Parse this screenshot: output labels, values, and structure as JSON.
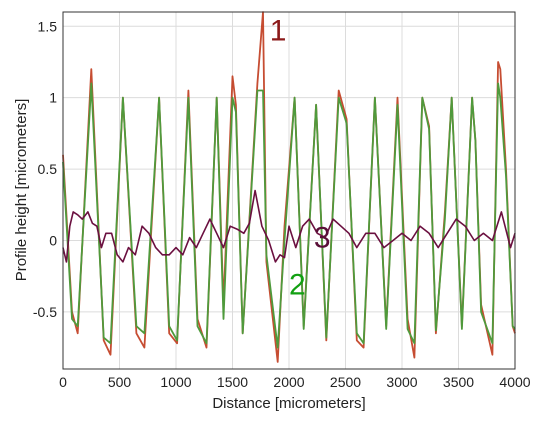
{
  "chart_data": {
    "type": "line",
    "xlabel": "Distance [micrometers]",
    "ylabel": "Profile height [micrometers]",
    "xlim": [
      0,
      4000
    ],
    "ylim": [
      -0.9,
      1.6
    ],
    "x_ticks": [
      0,
      500,
      1000,
      1500,
      2000,
      2500,
      3000,
      3500,
      4000
    ],
    "x_tick_labels": [
      "0",
      "500",
      "1000",
      "1500",
      "2000",
      "2500",
      "3000",
      "3500",
      "4000"
    ],
    "y_ticks": [
      -0.5,
      0,
      0.5,
      1,
      1.5
    ],
    "y_tick_labels": [
      "-0.5",
      "0",
      "0.5",
      "1",
      "1.5"
    ],
    "grid": true,
    "series": [
      {
        "name": "1",
        "color": "#c03a1c",
        "x": [
          0,
          80,
          130,
          250,
          360,
          420,
          530,
          650,
          720,
          850,
          940,
          1010,
          1110,
          1190,
          1270,
          1360,
          1420,
          1500,
          1530,
          1590,
          1720,
          1770,
          1800,
          1900,
          1960,
          2050,
          2130,
          2240,
          2330,
          2440,
          2510,
          2600,
          2660,
          2760,
          2860,
          2960,
          3050,
          3110,
          3180,
          3240,
          3300,
          3380,
          3440,
          3530,
          3620,
          3650,
          3700,
          3800,
          3850,
          3870,
          3920,
          3980,
          4000
        ],
        "values": [
          0.6,
          -0.5,
          -0.65,
          1.2,
          -0.7,
          -0.8,
          1.0,
          -0.65,
          -0.75,
          1.0,
          -0.65,
          -0.72,
          1.05,
          -0.55,
          -0.75,
          1.0,
          -0.45,
          1.15,
          0.95,
          -0.65,
          1.1,
          1.6,
          -0.15,
          -0.85,
          0.1,
          1.0,
          -0.6,
          0.95,
          -0.7,
          1.05,
          0.85,
          -0.7,
          -0.75,
          1.0,
          -0.6,
          1.0,
          -0.55,
          -0.82,
          1.0,
          0.8,
          -0.65,
          0.2,
          1.0,
          -0.6,
          1.0,
          0.7,
          -0.45,
          -0.8,
          1.25,
          1.2,
          0.5,
          -0.6,
          -0.65
        ]
      },
      {
        "name": "2",
        "color": "#4f9a3c",
        "x": [
          0,
          80,
          130,
          250,
          360,
          420,
          530,
          650,
          720,
          850,
          940,
          1010,
          1110,
          1190,
          1270,
          1360,
          1420,
          1500,
          1530,
          1590,
          1720,
          1770,
          1800,
          1900,
          1960,
          2050,
          2130,
          2240,
          2330,
          2440,
          2510,
          2600,
          2660,
          2760,
          2860,
          2960,
          3050,
          3110,
          3180,
          3240,
          3300,
          3380,
          3440,
          3530,
          3620,
          3650,
          3700,
          3800,
          3850,
          3870,
          3920,
          3980,
          4000
        ],
        "values": [
          0.55,
          -0.55,
          -0.6,
          1.1,
          -0.68,
          -0.72,
          1.0,
          -0.6,
          -0.65,
          1.0,
          -0.6,
          -0.7,
          1.0,
          -0.6,
          -0.72,
          1.0,
          -0.55,
          1.0,
          0.9,
          -0.65,
          1.05,
          1.05,
          -0.1,
          -0.75,
          0.0,
          1.0,
          -0.62,
          0.95,
          -0.68,
          1.0,
          0.82,
          -0.65,
          -0.72,
          1.0,
          -0.62,
          0.95,
          -0.62,
          -0.72,
          1.0,
          0.78,
          -0.63,
          0.15,
          1.0,
          -0.62,
          1.0,
          0.7,
          -0.5,
          -0.72,
          1.1,
          1.0,
          0.45,
          -0.6,
          -0.62
        ]
      },
      {
        "name": "3",
        "color": "#6b1040",
        "x": [
          0,
          30,
          60,
          90,
          130,
          170,
          220,
          260,
          300,
          340,
          380,
          430,
          480,
          530,
          580,
          640,
          700,
          760,
          820,
          880,
          940,
          1000,
          1060,
          1120,
          1180,
          1240,
          1300,
          1360,
          1420,
          1480,
          1540,
          1600,
          1650,
          1700,
          1760,
          1820,
          1880,
          1920,
          1960,
          2000,
          2060,
          2120,
          2180,
          2250,
          2320,
          2390,
          2460,
          2530,
          2600,
          2680,
          2760,
          2840,
          2920,
          3000,
          3080,
          3160,
          3240,
          3320,
          3400,
          3480,
          3560,
          3640,
          3720,
          3800,
          3880,
          3960,
          4000
        ],
        "values": [
          -0.05,
          -0.15,
          0.1,
          0.2,
          0.18,
          0.15,
          0.2,
          0.12,
          0.1,
          -0.05,
          0.05,
          0.05,
          -0.1,
          -0.15,
          -0.05,
          -0.1,
          0.1,
          0.05,
          -0.05,
          -0.1,
          -0.1,
          -0.05,
          -0.1,
          0.02,
          -0.05,
          0.05,
          0.15,
          0.05,
          -0.05,
          0.1,
          0.08,
          0.05,
          0.12,
          0.35,
          0.1,
          0.0,
          -0.15,
          -0.1,
          -0.12,
          0.1,
          -0.05,
          0.1,
          0.15,
          0.05,
          0.02,
          0.15,
          0.1,
          0.05,
          -0.05,
          0.05,
          0.05,
          -0.05,
          0.0,
          0.05,
          0.0,
          0.1,
          0.05,
          -0.05,
          0.05,
          0.15,
          0.1,
          0.0,
          0.05,
          0.0,
          0.2,
          -0.05,
          0.05
        ]
      }
    ],
    "curve_labels": [
      {
        "text": "1",
        "color": "#8b1a1a",
        "x": 1830,
        "y": 1.4
      },
      {
        "text": "2",
        "color": "#12a012",
        "x": 2000,
        "y": -0.38
      },
      {
        "text": "3",
        "color": "#5a0f38",
        "x": 2220,
        "y": -0.05
      }
    ]
  }
}
